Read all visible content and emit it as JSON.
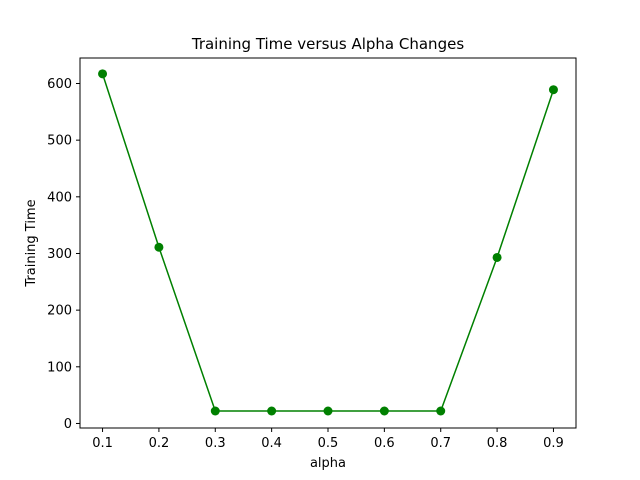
{
  "chart_data": {
    "type": "line",
    "title": "Training Time versus Alpha Changes",
    "xlabel": "alpha",
    "ylabel": "Training Time",
    "x": [
      0.1,
      0.2,
      0.3,
      0.4,
      0.5,
      0.6,
      0.7,
      0.8,
      0.9
    ],
    "series": [
      {
        "values": [
          617,
          311,
          22,
          22,
          22,
          22,
          22,
          293,
          589
        ],
        "color": "#008000",
        "marker": "circle"
      }
    ],
    "xlim": [
      0.06,
      0.94
    ],
    "ylim": [
      -8,
      645
    ],
    "xticks": [
      "0.1",
      "0.2",
      "0.3",
      "0.4",
      "0.5",
      "0.6",
      "0.7",
      "0.8",
      "0.9"
    ],
    "yticks": [
      "0",
      "100",
      "200",
      "300",
      "400",
      "500",
      "600"
    ],
    "grid": false,
    "legend": false
  }
}
